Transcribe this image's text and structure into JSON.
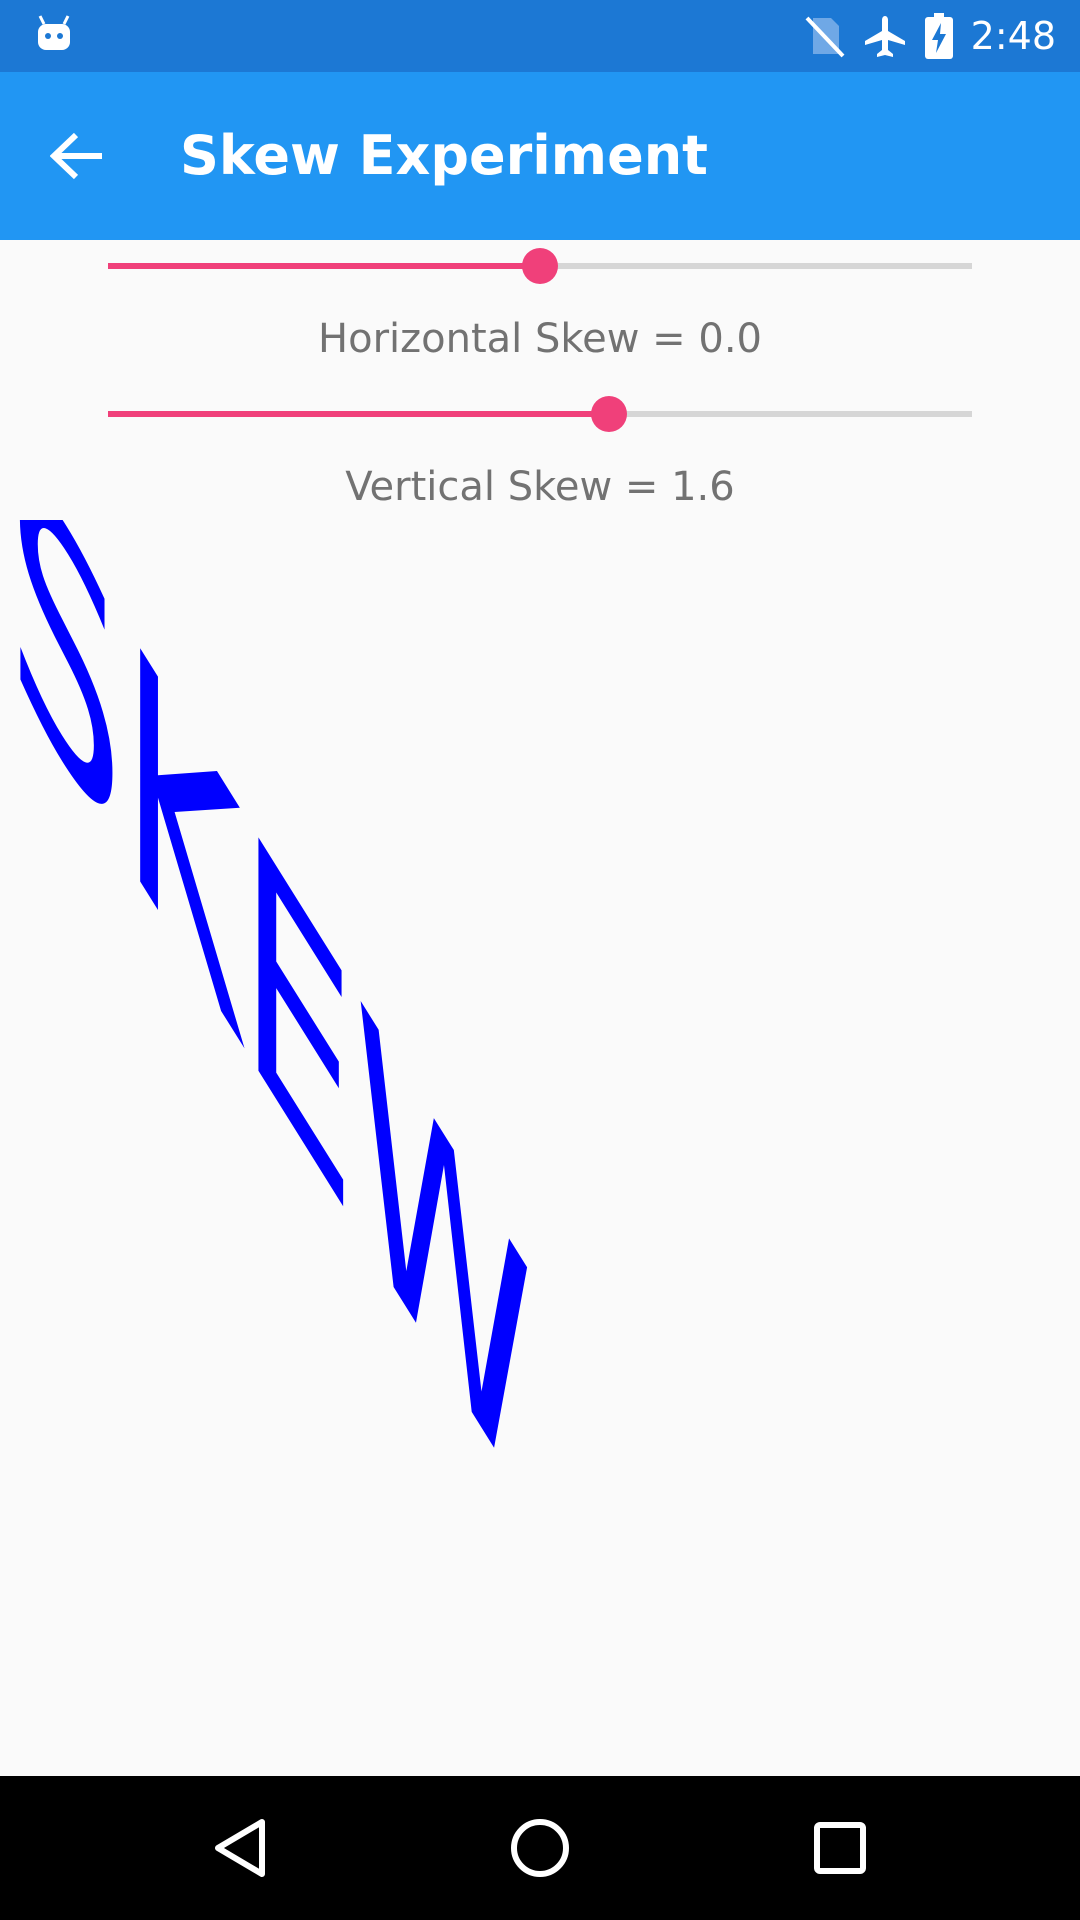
{
  "status_bar": {
    "time": "2:48",
    "icons": [
      "android-debug-icon",
      "no-sim-icon",
      "airplane-mode-icon",
      "battery-charging-icon"
    ]
  },
  "app_bar": {
    "title": "Skew Experiment",
    "back_icon": "back-arrow-icon",
    "background_color": "#2196F3"
  },
  "sliders": [
    {
      "label": "Horizontal Skew = 0.0",
      "fraction": 0.5
    },
    {
      "label": "Vertical Skew = 1.6",
      "fraction": 0.58
    }
  ],
  "canvas": {
    "text": "SKEW",
    "color": "#0000FF"
  },
  "nav_bar": {
    "icons": [
      "back-triangle-icon",
      "home-circle-icon",
      "recents-square-icon"
    ]
  }
}
